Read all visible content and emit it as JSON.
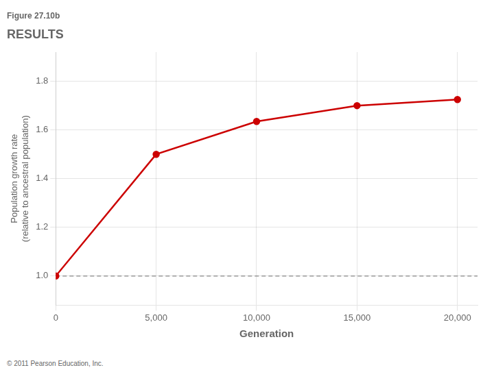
{
  "chart_data": {
    "type": "line",
    "title": "Figure 27.10b",
    "subtitle": "RESULTS",
    "x_label": "Generation",
    "y_label": "Population growth rate\n(relative to ancestral population)",
    "x": [
      0,
      5000,
      10000,
      15000,
      20000
    ],
    "values": [
      1.0,
      1.5,
      1.635,
      1.7,
      1.725
    ],
    "color": "#cc0000",
    "marker": "circle",
    "hlines": [
      {
        "y": 1.0,
        "color": "#888888",
        "line_style": "dashed"
      }
    ],
    "xlim": [
      0,
      21000
    ],
    "xticks": [
      0,
      {
        "value": 5000,
        "label": "5,000"
      },
      {
        "value": 10000,
        "label": "10,000"
      },
      {
        "value": 15000,
        "label": "15,000"
      },
      {
        "value": 20000,
        "label": "20,000"
      }
    ],
    "ylim": [
      0.88,
      1.92
    ],
    "yticks": [
      {
        "value": 1.0,
        "label": "1.0"
      },
      1.2,
      1.4,
      1.6,
      1.8
    ],
    "grid": true,
    "annotations": [
      "© 2011 Pearson Education, Inc."
    ]
  }
}
